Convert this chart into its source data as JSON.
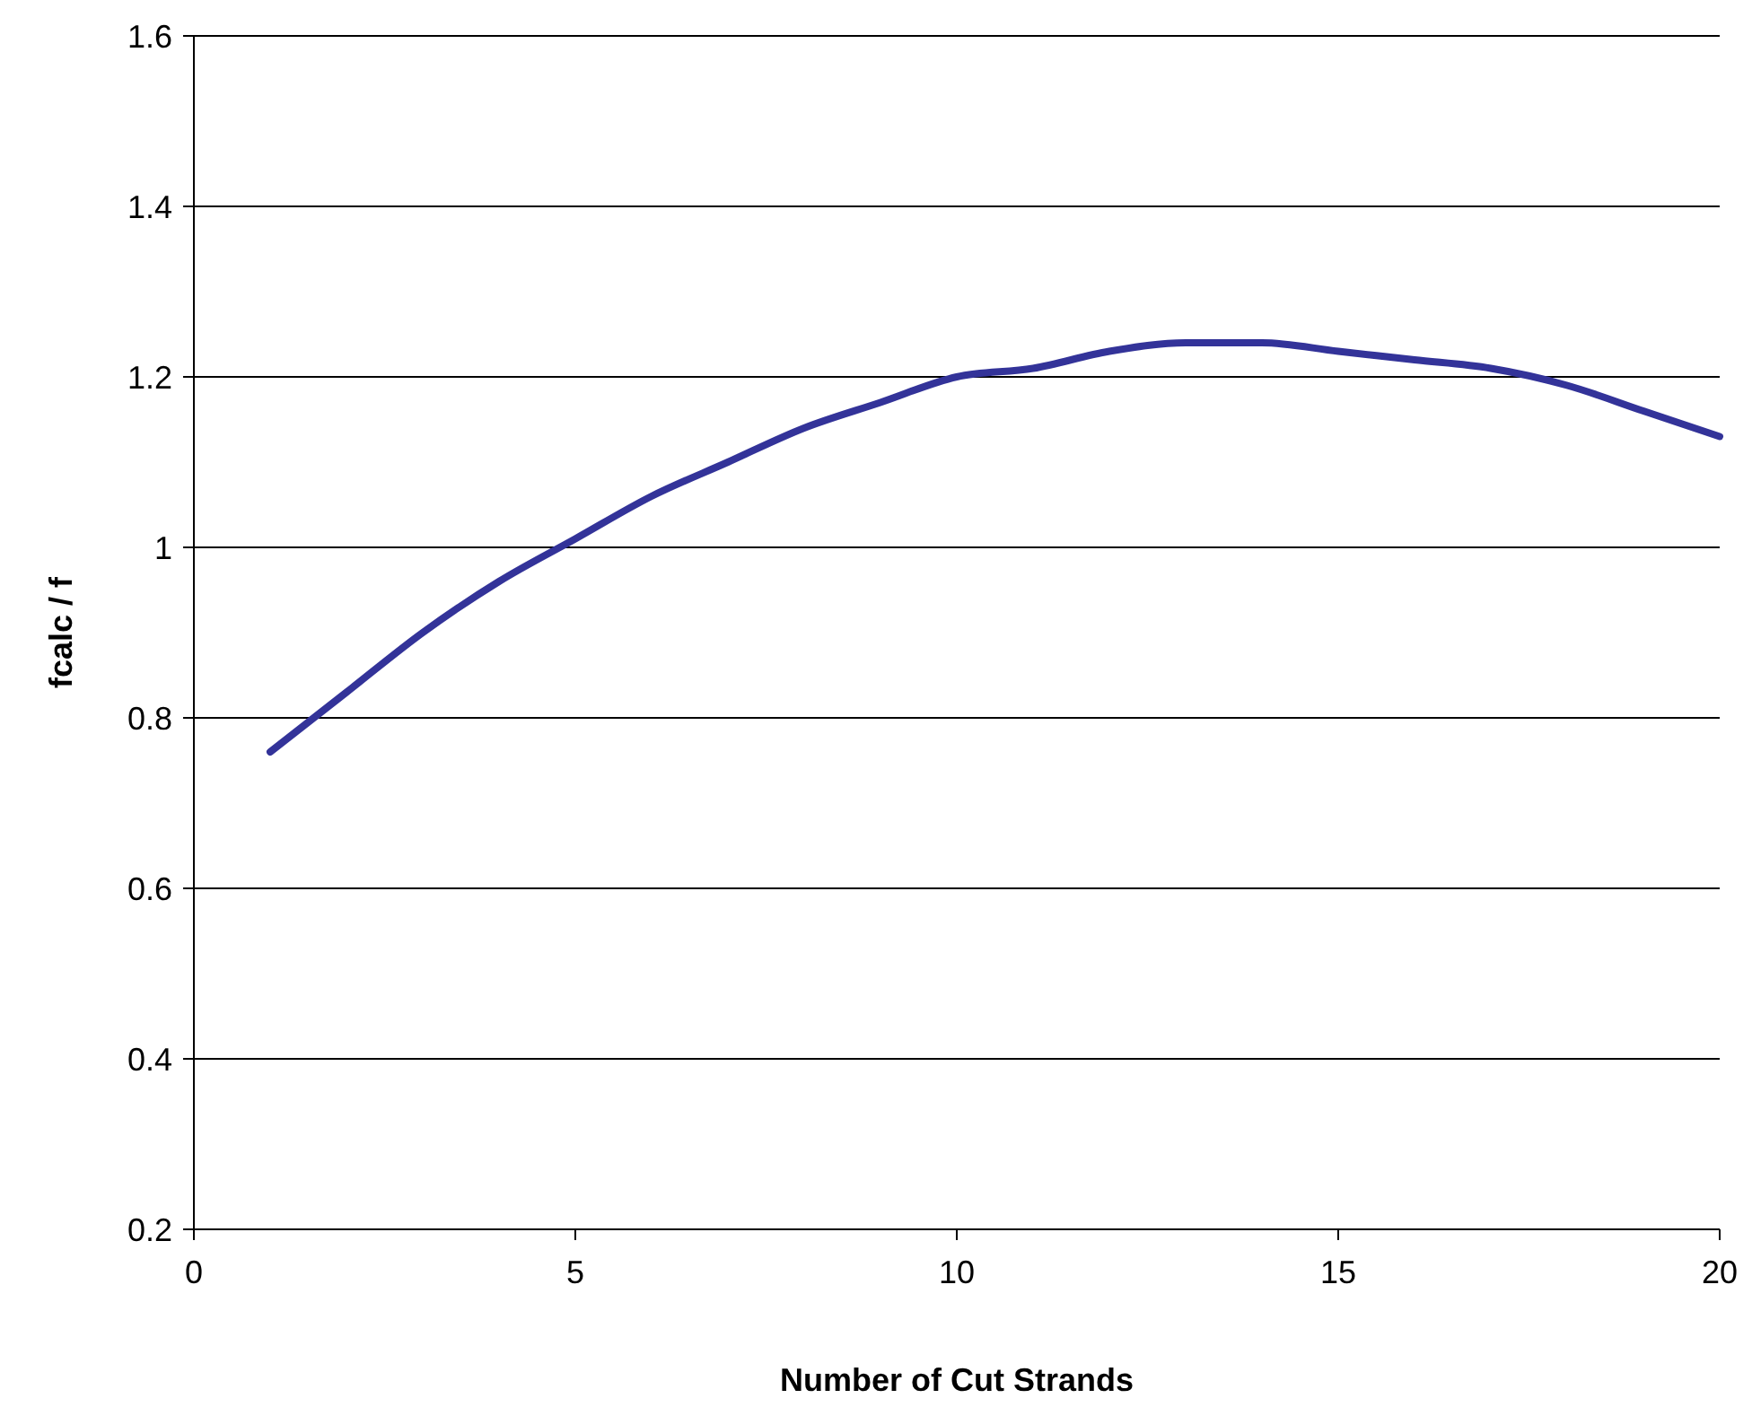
{
  "chart_data": {
    "type": "line",
    "xlabel": "Number of Cut Strands",
    "ylabel": "fcalc / f",
    "x": [
      1,
      2,
      3,
      4,
      5,
      6,
      7,
      8,
      9,
      10,
      11,
      12,
      13,
      14,
      15,
      16,
      17,
      18,
      19,
      20
    ],
    "series": [
      {
        "color": "#333399",
        "values": [
          0.76,
          0.83,
          0.9,
          0.96,
          1.01,
          1.06,
          1.1,
          1.14,
          1.17,
          1.2,
          1.21,
          1.23,
          1.24,
          1.24,
          1.23,
          1.22,
          1.21,
          1.19,
          1.16,
          1.13
        ]
      }
    ],
    "xlim": [
      0,
      20
    ],
    "xticks": [
      0,
      5,
      10,
      15,
      20
    ],
    "ylim": [
      0.2,
      1.6
    ],
    "yticks": [
      0.2,
      0.4,
      0.6,
      0.8,
      1,
      1.2,
      1.4,
      1.6
    ],
    "grid": "y",
    "marker": "none",
    "line_style": "solid"
  }
}
